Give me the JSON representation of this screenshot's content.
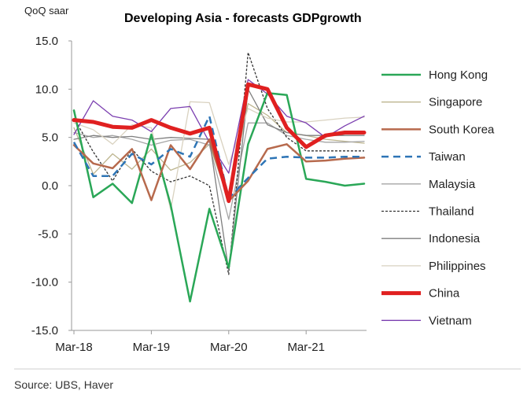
{
  "chart_data": {
    "type": "line",
    "title": "Developing Asia - forecasts GDPgrowth",
    "ylabel": "QoQ saar",
    "ylim": [
      -15,
      15
    ],
    "yticks": [
      "15.0",
      "10.0",
      "5.0",
      "0.0",
      "-5.0",
      "-10.0",
      "-15.0"
    ],
    "xticks": [
      "Mar-18",
      "Mar-19",
      "Mar-20",
      "Mar-21"
    ],
    "x": [
      "Mar-18",
      "Jun-18",
      "Sep-18",
      "Dec-18",
      "Mar-19",
      "Jun-19",
      "Sep-19",
      "Dec-19",
      "Mar-20",
      "Jun-20",
      "Sep-20",
      "Dec-20",
      "Mar-21",
      "Jun-21",
      "Sep-21",
      "Dec-21"
    ],
    "grid": false,
    "legend": "right",
    "source": "Source:  UBS, Haver",
    "series": [
      {
        "name": "Hong Kong",
        "color": "#2aa757",
        "dash": "",
        "width": 2.5,
        "values": [
          7.8,
          -1.2,
          0.2,
          -1.8,
          5.3,
          -2.0,
          -12.0,
          -2.4,
          -8.5,
          4.3,
          9.6,
          9.4,
          0.7,
          0.4,
          0.0,
          0.2
        ]
      },
      {
        "name": "Singapore",
        "color": "#bdb58f",
        "dash": "",
        "width": 1.3,
        "values": [
          6.0,
          1.2,
          3.3,
          1.7,
          3.8,
          1.6,
          2.4,
          4.3,
          -1.5,
          8.5,
          7.3,
          5.5,
          5.2,
          4.8,
          4.6,
          4.4
        ]
      },
      {
        "name": "South Korea",
        "color": "#b76a4d",
        "dash": "",
        "width": 2.5,
        "values": [
          4.2,
          2.3,
          1.8,
          3.8,
          -1.5,
          4.2,
          1.7,
          4.8,
          -1.6,
          0.5,
          3.8,
          4.3,
          2.5,
          2.6,
          2.8,
          2.9
        ]
      },
      {
        "name": "Taiwan",
        "color": "#2e75b6",
        "dash": "9 6",
        "width": 2.5,
        "values": [
          4.5,
          1.0,
          1.0,
          3.3,
          2.2,
          3.8,
          3.0,
          7.2,
          -1.3,
          0.8,
          2.8,
          3.0,
          2.9,
          2.9,
          3.0,
          3.0
        ]
      },
      {
        "name": "Malaysia",
        "color": "#a6a6a6",
        "dash": "",
        "width": 1.3,
        "values": [
          5.5,
          5.0,
          5.2,
          4.8,
          4.2,
          4.7,
          4.8,
          4.2,
          -3.5,
          6.5,
          6.5,
          5.2,
          4.8,
          4.5,
          4.5,
          4.6
        ]
      },
      {
        "name": "Thailand",
        "color": "#333333",
        "dash": "3 2",
        "width": 1.3,
        "values": [
          7.0,
          3.5,
          0.5,
          3.8,
          1.5,
          0.4,
          1.0,
          0.0,
          -9.2,
          13.8,
          8.0,
          5.0,
          3.6,
          3.6,
          3.6,
          3.6
        ]
      },
      {
        "name": "Indonesia",
        "color": "#7f7f7f",
        "dash": "",
        "width": 1.3,
        "values": [
          4.8,
          5.2,
          5.0,
          5.1,
          4.8,
          5.0,
          4.9,
          4.8,
          -8.8,
          10.0,
          6.3,
          5.5,
          5.2,
          5.2,
          5.2,
          5.2
        ]
      },
      {
        "name": "Philippines",
        "color": "#d9d2c0",
        "dash": "",
        "width": 1.3,
        "values": [
          6.5,
          5.8,
          4.3,
          6.3,
          6.0,
          -2.5,
          8.7,
          8.6,
          2.2,
          8.0,
          7.0,
          6.6,
          6.6,
          6.8,
          7.0,
          7.1
        ]
      },
      {
        "name": "China",
        "color": "#e02020",
        "dash": "",
        "width": 5,
        "values": [
          6.8,
          6.6,
          6.1,
          6.0,
          6.8,
          6.0,
          5.4,
          6.0,
          -1.6,
          10.5,
          10.0,
          6.0,
          4.0,
          5.2,
          5.5,
          5.5
        ]
      },
      {
        "name": "Vietnam",
        "color": "#7b3fb0",
        "dash": "",
        "width": 1.3,
        "values": [
          5.3,
          8.8,
          7.2,
          6.8,
          5.6,
          8.0,
          8.2,
          4.5,
          1.3,
          11.0,
          9.5,
          7.2,
          6.5,
          5.0,
          6.2,
          7.2
        ]
      }
    ]
  }
}
